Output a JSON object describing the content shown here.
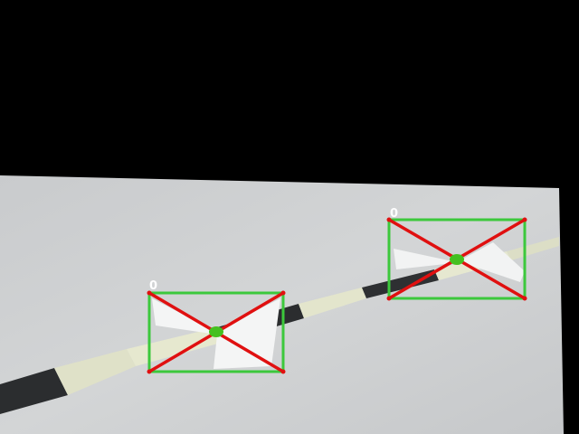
{
  "image": {
    "description_colors": {
      "background": "#000000",
      "floor": "#cfd1d2",
      "stripe_dark": "#2a2c2e",
      "stripe_light": "#e4e6cc",
      "box": "#3cc83c",
      "cross": "#e01010",
      "center": "#44c020",
      "label": "#ffffff"
    }
  },
  "detections": [
    {
      "label": "0",
      "class_index": 0
    },
    {
      "label": "0",
      "class_index": 0
    }
  ]
}
